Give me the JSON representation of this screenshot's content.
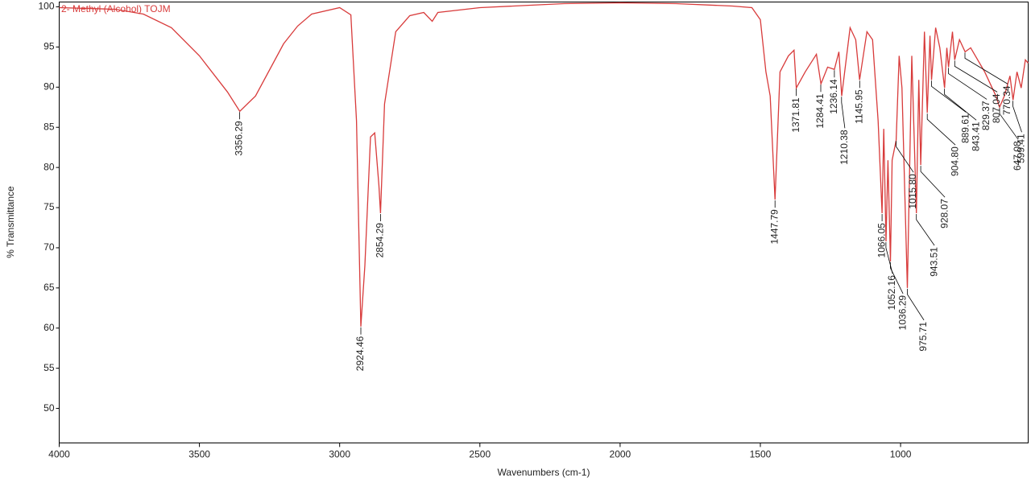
{
  "chart_data": {
    "type": "line",
    "x_label": "Wavenumbers (cm-1)",
    "y_label": "% Transmittance",
    "x": [
      4000,
      3800,
      3700,
      3600,
      3500,
      3400,
      3356,
      3300,
      3200,
      3150,
      3100,
      3000,
      2960,
      2940,
      2924.46,
      2910,
      2890,
      2875,
      2860,
      2854.29,
      2840,
      2800,
      2750,
      2700,
      2670,
      2650,
      2500,
      2200,
      2000,
      1800,
      1600,
      1530,
      1500,
      1480,
      1465,
      1447.79,
      1430,
      1400,
      1380,
      1371.81,
      1340,
      1300,
      1284,
      1260,
      1236,
      1220,
      1210,
      1180,
      1160,
      1146,
      1120,
      1100,
      1080,
      1066,
      1060,
      1052,
      1045,
      1036,
      1030,
      1015.8,
      1005,
      995,
      975.71,
      960,
      943.51,
      935,
      928,
      915,
      904.8,
      895,
      889.6,
      875,
      860,
      843,
      835,
      829,
      815,
      807,
      790,
      770,
      750,
      700,
      660,
      647,
      630,
      610,
      599,
      585,
      570,
      555,
      545
    ],
    "series": [
      {
        "name": "2- Methyl (Alcohol) TOJM",
        "color": "#d83b3b",
        "values": [
          99.9,
          99.7,
          99.1,
          97.4,
          93.9,
          89.4,
          87.0,
          88.9,
          95.4,
          97.6,
          99.1,
          99.9,
          99.0,
          85.8,
          60.2,
          67.8,
          83.8,
          84.3,
          77.8,
          74.3,
          87.9,
          96.9,
          98.9,
          99.3,
          98.2,
          99.3,
          99.9,
          100.4,
          100.5,
          100.4,
          100.1,
          99.9,
          98.4,
          91.9,
          88.9,
          76.0,
          91.9,
          93.9,
          94.6,
          89.9,
          91.9,
          94.1,
          90.4,
          92.5,
          92.2,
          94.4,
          88.9,
          97.4,
          95.9,
          90.9,
          96.9,
          95.9,
          85.8,
          74.3,
          84.8,
          70.8,
          80.9,
          68.3,
          80.9,
          83.4,
          93.9,
          89.9,
          65.0,
          93.9,
          74.3,
          90.9,
          80.3,
          96.9,
          86.8,
          96.4,
          90.9,
          97.4,
          94.9,
          89.9,
          94.9,
          92.5,
          96.9,
          93.4,
          95.9,
          94.4,
          94.9,
          91.9,
          88.9,
          87.5,
          88.9,
          91.4,
          88.4,
          91.9,
          89.9,
          93.4,
          93.0
        ]
      }
    ],
    "peaks": {
      "x": [
        3356.29,
        2924.46,
        2854.29,
        1447.79,
        1371.81,
        1284.41,
        1236.14,
        1210.38,
        1145.95,
        1066.05,
        1052.16,
        1036.29,
        1015.8,
        975.71,
        943.51,
        928.07,
        904.8,
        889.61,
        843.41,
        829.37,
        807.04,
        770.34,
        647.08,
        599.41
      ],
      "y": [
        87.0,
        60.2,
        74.3,
        76.0,
        89.9,
        90.4,
        92.2,
        88.9,
        90.9,
        74.3,
        70.8,
        68.3,
        83.4,
        65.0,
        74.3,
        80.3,
        86.8,
        90.9,
        89.9,
        92.5,
        93.4,
        94.4,
        87.5,
        88.4
      ],
      "labels": [
        "3356.29",
        "2924.46",
        "2854.29",
        "1447.79",
        "1371.81",
        "1284.41",
        "1236.14",
        "1210.38",
        "1145.95",
        "1066.05",
        "1052.16",
        "1036.29",
        "1015.80",
        "975.71",
        "943.51",
        "928.07",
        "904.80",
        "889.61",
        "843.41",
        "829.37",
        "807.04",
        "770.34",
        "647.08",
        "599.41"
      ]
    },
    "xlim": [
      4000,
      545
    ],
    "ylim": [
      45.7,
      100.6
    ],
    "xticks": [
      4000,
      3500,
      3000,
      2500,
      2000,
      1500,
      1000
    ],
    "yticks": [
      50,
      55,
      60,
      65,
      70,
      75,
      80,
      85,
      90,
      95,
      100
    ]
  }
}
